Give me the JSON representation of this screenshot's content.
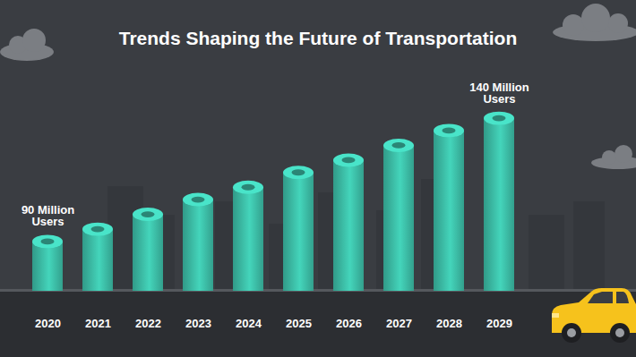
{
  "chart_data": {
    "type": "bar",
    "title": "Trends Shaping the Future of Transportation",
    "categories": [
      "2020",
      "2021",
      "2022",
      "2023",
      "2024",
      "2025",
      "2026",
      "2027",
      "2028",
      "2029"
    ],
    "values": [
      90,
      95,
      101,
      107,
      112,
      118,
      123,
      129,
      135,
      140
    ],
    "value_labels": [
      "90 Million Users",
      null,
      null,
      null,
      null,
      null,
      null,
      null,
      null,
      "140 Million Users"
    ],
    "data_labels": true,
    "color": "#3dbfa8",
    "ylim": [
      70,
      160
    ],
    "tick_labels": "x",
    "grid": false
  }
}
